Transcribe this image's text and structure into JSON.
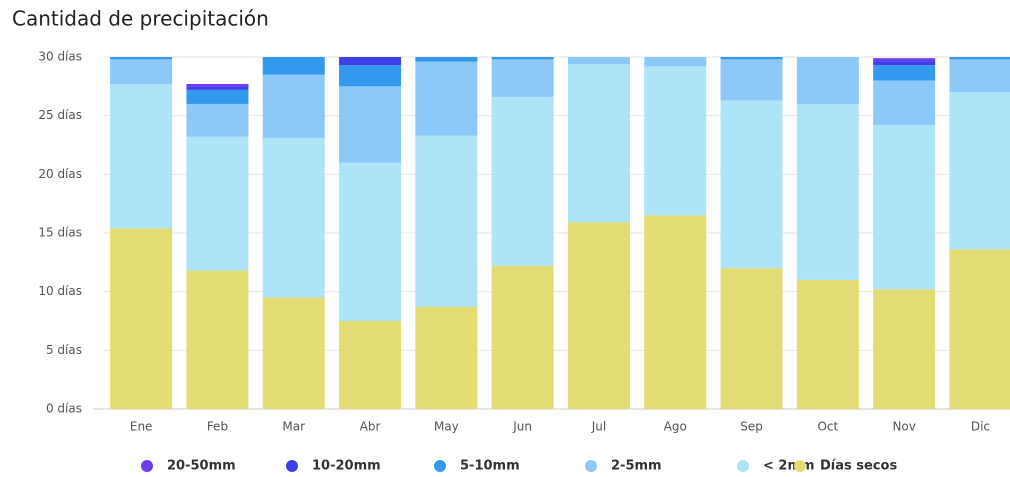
{
  "chart_data": {
    "type": "stacked_bar",
    "title": "Cantidad de precipitación",
    "categories": [
      "Ene",
      "Feb",
      "Mar",
      "Abr",
      "May",
      "Jun",
      "Jul",
      "Ago",
      "Sep",
      "Oct",
      "Nov",
      "Dic"
    ],
    "series": [
      {
        "name": "Días secos",
        "color": "#e3dc74",
        "values": [
          15.4,
          11.8,
          9.5,
          7.5,
          8.7,
          12.2,
          15.9,
          16.5,
          12.0,
          11.0,
          10.2,
          13.6
        ]
      },
      {
        "name": "< 2mm",
        "color": "#ade4f7",
        "values": [
          12.3,
          11.4,
          13.6,
          13.5,
          14.6,
          14.4,
          13.5,
          12.7,
          14.3,
          15.0,
          14.0,
          13.4
        ]
      },
      {
        "name": "2-5mm",
        "color": "#8cc8f8",
        "values": [
          2.1,
          2.8,
          5.4,
          6.5,
          6.3,
          3.2,
          0.6,
          0.8,
          3.5,
          4.0,
          3.8,
          2.8
        ]
      },
      {
        "name": "5-10mm",
        "color": "#3399ee",
        "values": [
          0.2,
          1.2,
          1.5,
          1.8,
          0.4,
          0.2,
          0,
          0,
          0.2,
          0,
          1.3,
          0.2
        ]
      },
      {
        "name": "10-20mm",
        "color": "#3d3fe8",
        "values": [
          0,
          0.25,
          0,
          0.7,
          0,
          0,
          0,
          0,
          0,
          0,
          0.35,
          0
        ]
      },
      {
        "name": "20-50mm",
        "color": "#6d3cf0",
        "values": [
          0,
          0.25,
          0,
          0,
          0,
          0,
          0,
          0,
          0,
          0,
          0.25,
          0
        ]
      }
    ],
    "ylim": [
      0,
      30
    ],
    "yticks": [
      {
        "value": 0,
        "label": "0 días"
      },
      {
        "value": 5,
        "label": "5 días"
      },
      {
        "value": 10,
        "label": "10 días"
      },
      {
        "value": 15,
        "label": "15 días"
      },
      {
        "value": 20,
        "label": "20 días"
      },
      {
        "value": 25,
        "label": "25 días"
      },
      {
        "value": 30,
        "label": "30 días"
      }
    ],
    "grid": true
  }
}
